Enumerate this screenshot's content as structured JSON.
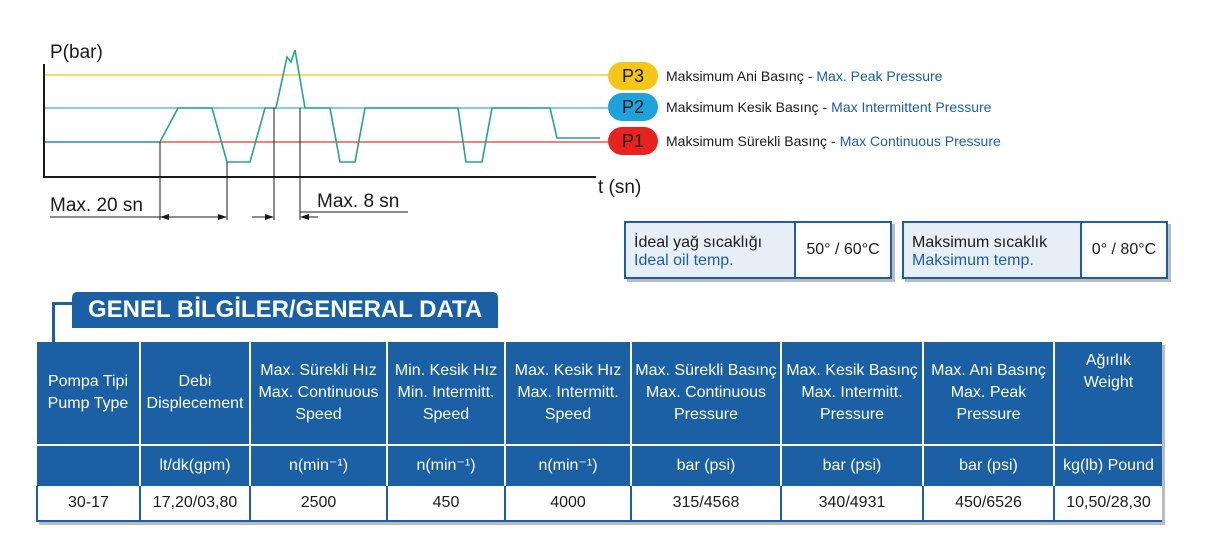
{
  "diagram": {
    "y_axis_label": "P(bar)",
    "x_axis_label": "t (sn)",
    "annotation_left": "Max. 20 sn",
    "annotation_right": "Max. 8 sn",
    "colors": {
      "p3_line": "#f3c410",
      "p2_line": "#3ab0d8",
      "p1_line": "#e03a2a",
      "pressure_trace": "#24a58a",
      "axis": "#1a1a1a"
    }
  },
  "legend": [
    {
      "badge": "P3",
      "tr": "Maksimum Ani Basınç",
      "en": "Max. Peak Pressure",
      "color": "#f5c518"
    },
    {
      "badge": "P2",
      "tr": "Maksimum Kesik Basınç",
      "en": "Max Intermittent Pressure",
      "color": "#1ea2dc"
    },
    {
      "badge": "P1",
      "tr": "Maksimum Sürekli Basınç",
      "en": "Max Continuous Pressure",
      "color": "#e8231f"
    }
  ],
  "legend_sep": "-",
  "temps": [
    {
      "tr": "İdeal yağ sıcaklığı",
      "en": "Ideal oil temp.",
      "value": "50° / 60°C"
    },
    {
      "tr": "Maksimum sıcaklık",
      "en": "Maksimum temp.",
      "value": "0° / 80°C"
    }
  ],
  "section_title": "GENEL BİLGİLER/GENERAL DATA",
  "table": {
    "headers": [
      [
        "Pompa Tipi",
        "Pump Type"
      ],
      [
        "Debi",
        "Displecement"
      ],
      [
        "Max. Sürekli Hız",
        "Max. Continuous",
        "Speed"
      ],
      [
        "Min. Kesik Hız",
        "Min. Intermitt.",
        "Speed"
      ],
      [
        "Max. Kesik Hız",
        "Max. Intermitt.",
        "Speed"
      ],
      [
        "Max. Sürekli Basınç",
        "Max. Continuous",
        "Pressure"
      ],
      [
        "Max. Kesik Basınç",
        "Max. Intermitt.",
        "Pressure"
      ],
      [
        "Max. Ani Basınç",
        "Max. Peak",
        "Pressure"
      ],
      [
        "Ağırlık",
        "Weight"
      ]
    ],
    "units": [
      "",
      "lt/dk(gpm)",
      "n(min⁻¹)",
      "n(min⁻¹)",
      "n(min⁻¹)",
      "bar (psi)",
      "bar (psi)",
      "bar (psi)",
      "kg(lb) Pound"
    ],
    "rows": [
      [
        "30-17",
        "17,20/03,80",
        "2500",
        "450",
        "4000",
        "315/4568",
        "340/4931",
        "450/6526",
        "10,50/28,30"
      ]
    ]
  }
}
